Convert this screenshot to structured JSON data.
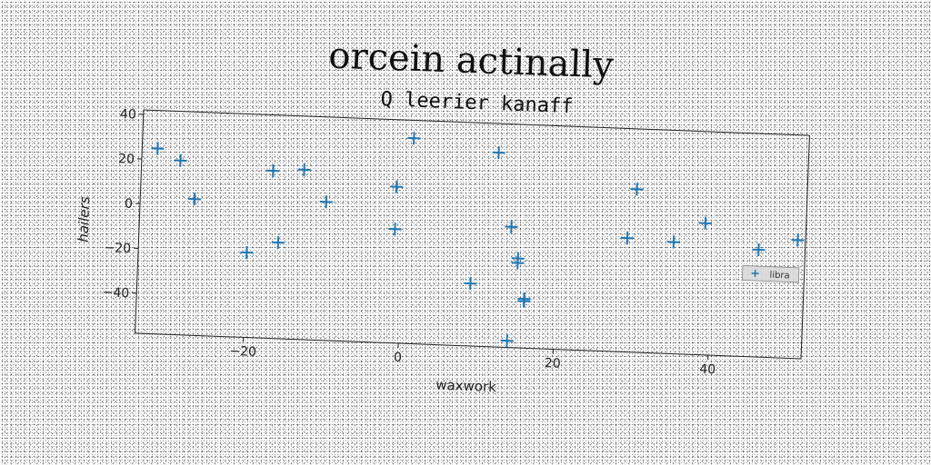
{
  "suptitle": "orcein actinally",
  "chart_data": {
    "type": "scatter",
    "title": "Q leerier kanaff",
    "xlabel": "waxwork",
    "ylabel": "hailers",
    "xlim": [
      -34,
      52
    ],
    "ylim": [
      -58,
      42
    ],
    "xticks": [
      -20,
      0,
      20,
      40
    ],
    "yticks": [
      -40,
      -20,
      0,
      20,
      40
    ],
    "grid": false,
    "legend_position": "right",
    "series": [
      {
        "name": "libra",
        "marker": "plus",
        "color": "#1f77b4",
        "x": [
          -32,
          -29,
          -27,
          -20,
          -17,
          -16,
          -13,
          -10,
          -1,
          -1,
          1,
          9,
          12,
          14,
          14,
          15,
          15,
          16,
          16,
          16,
          29,
          30,
          35,
          39,
          46,
          51
        ],
        "y": [
          25,
          20,
          3,
          -20,
          17,
          -15,
          18,
          4,
          12,
          -7,
          34,
          -30,
          29,
          -55,
          -4,
          -20,
          -18,
          -36,
          -36,
          -37,
          -7,
          15,
          -8,
          1,
          -10,
          -5
        ]
      }
    ]
  }
}
